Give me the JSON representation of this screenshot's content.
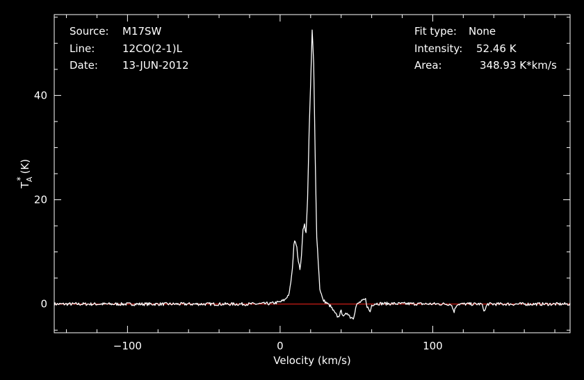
{
  "header": {
    "source_label": "Source:",
    "source_value": "M17SW",
    "line_label": "Line:",
    "line_value": "12CO(2-1)L",
    "date_label": "Date:",
    "date_value": "13-JUN-2012",
    "fit_label": "Fit type:",
    "fit_value": "None",
    "intensity_label": "Intensity:",
    "intensity_value": "52.46 K",
    "area_label": "Area:",
    "area_value": "348.93 K*km/s"
  },
  "chart_data": {
    "type": "line",
    "title": "",
    "xlabel": "Velocity (km/s)",
    "ylabel": "T*A (K)",
    "ylabel_main": "T",
    "ylabel_sup": "*",
    "ylabel_sub": "A",
    "ylabel_unit": "(K)",
    "xlim": [
      -148,
      190
    ],
    "ylim": [
      -5.5,
      55.5
    ],
    "xticks_major": [
      -100,
      0,
      100
    ],
    "xtick_labels": [
      "−100",
      "0",
      "100"
    ],
    "xticks_minor_step": 20,
    "yticks_major": [
      0,
      20,
      40
    ],
    "ytick_labels": [
      "0",
      "20",
      "40"
    ],
    "yticks_minor_step": 5,
    "grid": false,
    "baseline": 0,
    "colors": {
      "background": "#000000",
      "axes": "#ffffff",
      "spectrum": "#ffffff",
      "baseline": "#e0201a"
    },
    "series": [
      {
        "values": {
          "x": [
            -148,
            -20,
            -6,
            0,
            3,
            6,
            8,
            9,
            10,
            11,
            12,
            13,
            14,
            15,
            16,
            17,
            18,
            19,
            20,
            21,
            22,
            23,
            24,
            25,
            26,
            28,
            30,
            33,
            36,
            38,
            40,
            42,
            44,
            46,
            48,
            50,
            52,
            54,
            56,
            57,
            58,
            59,
            60,
            62,
            112,
            113,
            114,
            115,
            116,
            118,
            132,
            133,
            134,
            135,
            136,
            138,
            190
          ],
          "y": [
            0,
            0,
            0.1,
            0.4,
            0.8,
            2.0,
            6.5,
            11.5,
            12.2,
            11.0,
            8.0,
            6.8,
            9.0,
            14.5,
            15.3,
            13.5,
            20.0,
            33.0,
            42.0,
            52.5,
            46.0,
            28.0,
            13.0,
            8.0,
            3.0,
            0.8,
            0.3,
            -0.4,
            -1.8,
            -2.5,
            -1.4,
            -2.4,
            -1.6,
            -2.5,
            -2.6,
            -0.2,
            0.3,
            0.6,
            0.9,
            -0.4,
            -1.0,
            -1.5,
            -0.2,
            0.1,
            0,
            -0.8,
            -1.4,
            -0.6,
            0,
            0,
            0,
            -0.7,
            -1.4,
            -0.5,
            0,
            0,
            0
          ]
        }
      }
    ]
  }
}
